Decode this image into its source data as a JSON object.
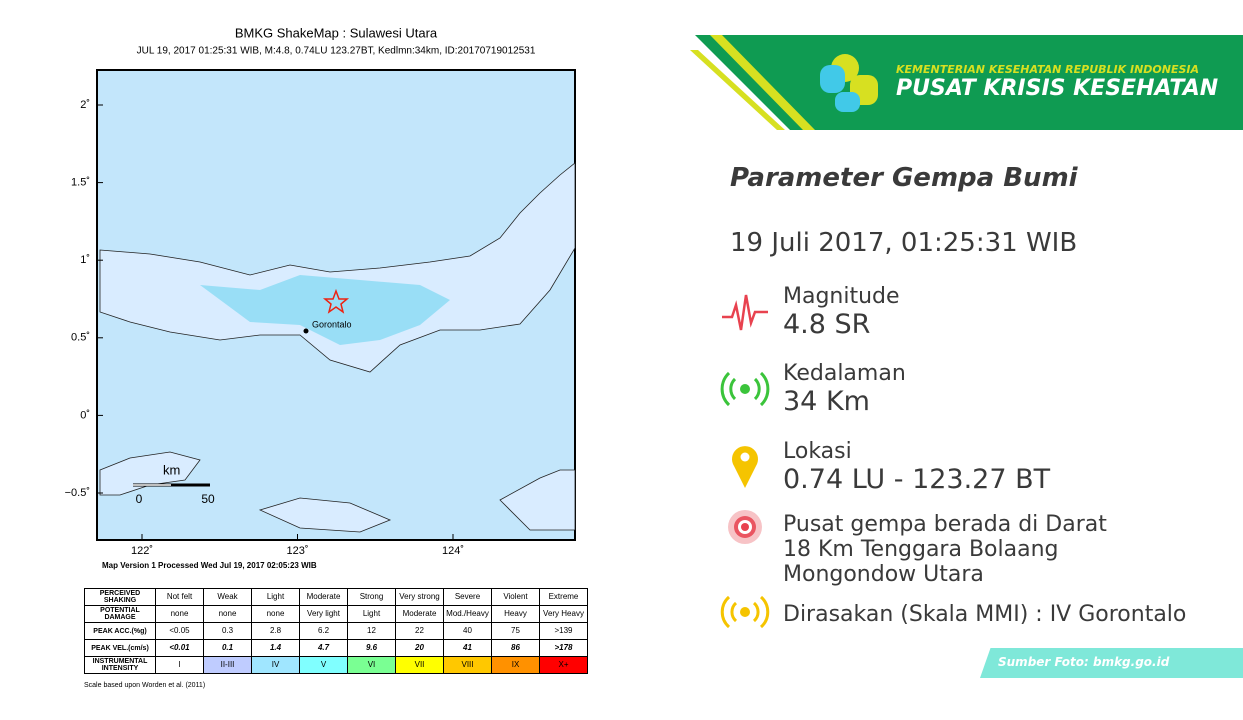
{
  "shakemap": {
    "title": "BMKG ShakeMap : Sulawesi Utara",
    "subtitle": "JUL 19, 2017 01:25:31 WIB, M:4.8, 0.74LU 123.27BT, Kedlmn:34km, ID:20170719012531",
    "lat_labels": [
      "2˚",
      "1.5˚",
      "1˚",
      "0.5˚",
      "0˚",
      "−0.5˚"
    ],
    "lon_labels": [
      "122˚",
      "123˚",
      "124˚"
    ],
    "city": "Gorontalo",
    "scale_unit": "km",
    "scale_labels": [
      "0",
      "50"
    ],
    "version": "Map Version 1 Processed Wed Jul 19, 2017 02:05:23 WIB",
    "footnote": "Scale based upon Worden et al. (2011)"
  },
  "table": {
    "rows": [
      [
        "PERCEIVED SHAKING",
        "Not felt",
        "Weak",
        "Light",
        "Moderate",
        "Strong",
        "Very strong",
        "Severe",
        "Violent",
        "Extreme"
      ],
      [
        "POTENTIAL DAMAGE",
        "none",
        "none",
        "none",
        "Very light",
        "Light",
        "Moderate",
        "Mod./Heavy",
        "Heavy",
        "Very Heavy"
      ],
      [
        "PEAK ACC.(%g)",
        "<0.05",
        "0.3",
        "2.8",
        "6.2",
        "12",
        "22",
        "40",
        "75",
        ">139"
      ],
      [
        "PEAK VEL.(cm/s)",
        "<0.01",
        "0.1",
        "1.4",
        "4.7",
        "9.6",
        "20",
        "41",
        "86",
        ">178"
      ],
      [
        "INSTRUMENTAL INTENSITY",
        "I",
        "II-III",
        "IV",
        "V",
        "VI",
        "VII",
        "VIII",
        "IX",
        "X+"
      ]
    ]
  },
  "panel": {
    "org": "KEMENTERIAN KESEHATAN REPUBLIK INDONESIA",
    "unit": "PUSAT KRISIS KESEHATAN",
    "heading": "Parameter Gempa Bumi",
    "date": "19 Juli 2017, 01:25:31 WIB",
    "magnitude": {
      "label": "Magnitude",
      "value": "4.8 SR"
    },
    "depth": {
      "label": "Kedalaman",
      "value": "34 Km"
    },
    "location": {
      "label": "Lokasi",
      "value": "0.74 LU - 123.27 BT"
    },
    "epicenter": [
      "Pusat gempa berada di Darat",
      "18 Km Tenggara Bolaang",
      "Mongondow Utara"
    ],
    "felt": "Dirasakan (Skala MMI) : IV Gorontalo",
    "source": "Sumber Foto: bmkg.go.id"
  }
}
